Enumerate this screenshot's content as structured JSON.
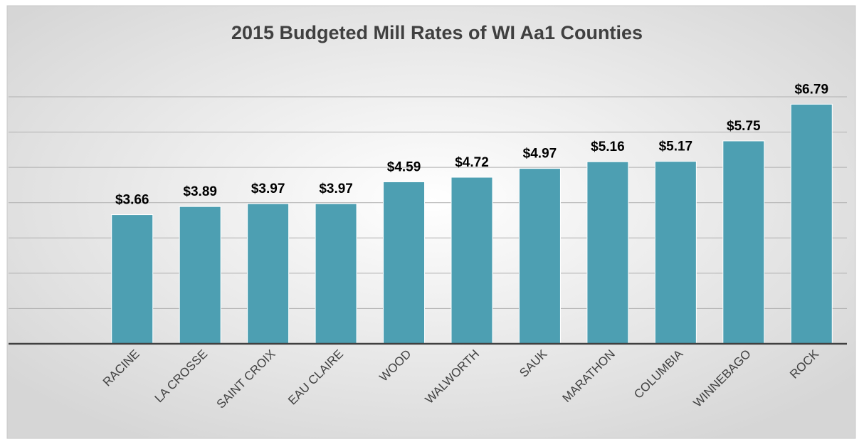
{
  "chart_data": {
    "type": "bar",
    "title": "2015 Budgeted Mill Rates of WI Aa1 Counties",
    "categories": [
      "RACINE",
      "LA CROSSE",
      "SAINT CROIX",
      "EAU CLAIRE",
      "WOOD",
      "WALWORTH",
      "SAUK",
      "MARATHON",
      "COLUMBIA",
      "WINNEBAGO",
      "ROCK"
    ],
    "values": [
      3.66,
      3.89,
      3.97,
      3.97,
      4.59,
      4.72,
      4.97,
      5.16,
      5.17,
      5.75,
      6.79
    ],
    "value_labels": [
      "$3.66",
      "$3.89",
      "$3.97",
      "$3.97",
      "$4.59",
      "$4.72",
      "$4.97",
      "$5.16",
      "$5.17",
      "$5.75",
      "$6.79"
    ],
    "color": "#4d9fb2",
    "ylim": [
      0,
      7
    ],
    "yticks": [
      0,
      1,
      2,
      3,
      4,
      5,
      6,
      7
    ],
    "grid": true
  }
}
